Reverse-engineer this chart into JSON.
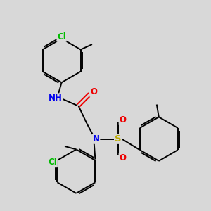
{
  "bg_color": "#d8d8d8",
  "bond_color": "#000000",
  "atom_colors": {
    "Cl": "#00bb00",
    "N": "#0000ee",
    "O": "#ee0000",
    "S": "#bbaa00",
    "C": "#000000",
    "H": "#0000ee"
  },
  "lw": 1.4,
  "fs": 8.5,
  "xlim": [
    0,
    10
  ],
  "ylim": [
    0,
    10
  ]
}
